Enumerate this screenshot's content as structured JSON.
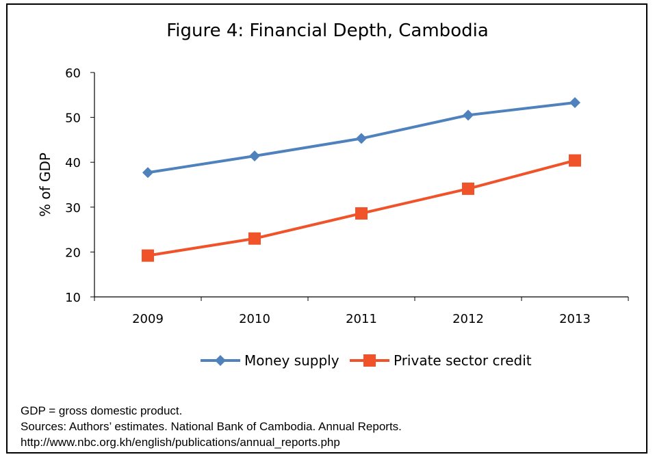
{
  "title": "Figure 4: Financial Depth, Cambodia",
  "notes": {
    "definition": "GDP = gross domestic product.",
    "sources": "Sources: Authors’ estimates. National Bank of Cambodia. Annual Reports.",
    "url": "http://www.nbc.org.kh/english/publications/annual_reports.php"
  },
  "chart_data": {
    "type": "line",
    "title": "Figure 4: Financial Depth, Cambodia",
    "xlabel": "",
    "ylabel": "% of GDP",
    "categories": [
      "2009",
      "2010",
      "2011",
      "2012",
      "2013"
    ],
    "ylim": [
      10,
      60
    ],
    "yticks": [
      10,
      20,
      30,
      40,
      50,
      60
    ],
    "grid": false,
    "legend": "bottom",
    "series": [
      {
        "name": "Money supply",
        "values": [
          37.7,
          41.4,
          45.3,
          50.5,
          53.3
        ],
        "color": "#4F81BD",
        "marker": "diamond"
      },
      {
        "name": "Private sector credit",
        "values": [
          19.2,
          23.0,
          28.6,
          34.1,
          40.4
        ],
        "color": "#F0532A",
        "marker": "square"
      }
    ]
  }
}
